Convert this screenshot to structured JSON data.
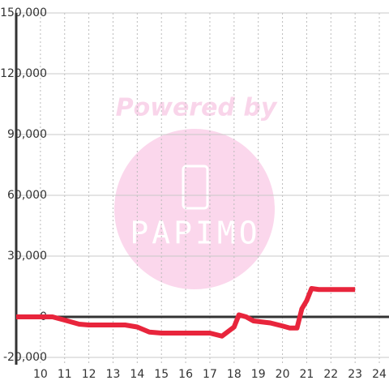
{
  "chart_data": {
    "type": "line",
    "watermark": {
      "top": "Powered by",
      "logo": "PAPIMO"
    },
    "x": [
      9,
      10.5,
      11,
      11.6,
      12,
      13,
      13.5,
      14,
      14.5,
      15,
      16,
      17,
      17.5,
      18,
      18.2,
      18.5,
      18.8,
      19.5,
      20,
      20.3,
      20.6,
      20.8,
      21,
      21.2,
      21.5,
      23
    ],
    "series": [
      {
        "color": "#e8253c",
        "values": [
          0,
          0,
          -1600,
          -3600,
          -4000,
          -4000,
          -4000,
          -5000,
          -7500,
          -8000,
          -8000,
          -8000,
          -9500,
          -5000,
          1000,
          0,
          -2000,
          -3000,
          -4500,
          -5500,
          -5500,
          4000,
          8000,
          14000,
          13500,
          13500
        ]
      }
    ],
    "xlim": [
      9,
      24.4
    ],
    "xticks": [
      10,
      11,
      12,
      13,
      14,
      15,
      16,
      17,
      18,
      19,
      20,
      21,
      22,
      23,
      24
    ],
    "ylim": [
      -20000,
      150000
    ],
    "yticks": [
      {
        "value": -20000,
        "label": "-20,000"
      },
      0,
      {
        "value": 30000,
        "label": "30,000"
      },
      {
        "value": 60000,
        "label": "60,000"
      },
      {
        "value": 90000,
        "label": "90,000"
      },
      {
        "value": 120000,
        "label": "120,000"
      },
      {
        "value": 150000,
        "label": "150,000"
      }
    ],
    "grid": true
  }
}
